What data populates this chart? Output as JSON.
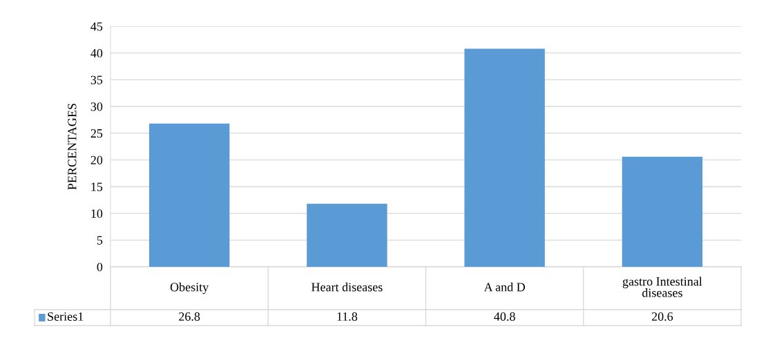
{
  "chart_data": {
    "type": "bar",
    "ylabel": "PERCENTAGES",
    "categories": [
      "Obesity",
      "Heart diseases",
      "A and D",
      "gastro Intestinal diseases"
    ],
    "series": [
      {
        "name": "Series1",
        "color": "#5b9bd5",
        "values": [
          26.8,
          11.8,
          40.8,
          20.6
        ]
      }
    ],
    "ylim": [
      0,
      45
    ],
    "yticks": [
      0,
      5,
      10,
      15,
      20,
      25,
      30,
      35,
      40,
      45
    ],
    "grid": "y",
    "data_labels": true,
    "legend": "bottom"
  }
}
